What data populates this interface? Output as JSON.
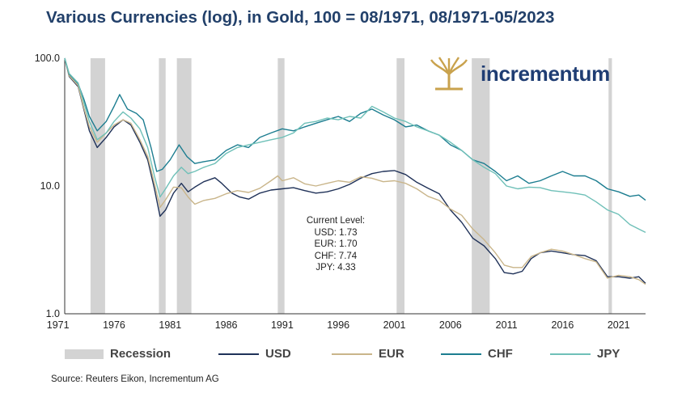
{
  "chart_data": {
    "type": "line",
    "title": "Various Currencies (log), in Gold, 100 = 08/1971, 08/1971-05/2023",
    "y_scale": "log",
    "ylim": [
      1,
      100
    ],
    "xlim": [
      1971.6,
      2023.4
    ],
    "y_ticks": [
      "100.0",
      "10.0",
      "1.0"
    ],
    "x_ticks": [
      "1971",
      "1976",
      "1981",
      "1986",
      "1991",
      "1996",
      "2001",
      "2006",
      "2011",
      "2016",
      "2021"
    ],
    "recessions": [
      [
        1973.9,
        1975.2
      ],
      [
        1980.0,
        1980.6
      ],
      [
        1981.6,
        1982.9
      ],
      [
        1990.6,
        1991.2
      ],
      [
        2001.2,
        2001.9
      ],
      [
        2007.9,
        2009.5
      ],
      [
        2020.1,
        2020.4
      ]
    ],
    "series": [
      {
        "name": "USD",
        "color": "#1f3158",
        "points": [
          [
            1971.6,
            100
          ],
          [
            1972,
            72
          ],
          [
            1972.8,
            60
          ],
          [
            1973.3,
            40
          ],
          [
            1973.8,
            27
          ],
          [
            1974.5,
            20
          ],
          [
            1975.3,
            24
          ],
          [
            1976,
            29
          ],
          [
            1976.8,
            33
          ],
          [
            1977.5,
            30
          ],
          [
            1978.3,
            22
          ],
          [
            1979,
            16
          ],
          [
            1979.6,
            9.5
          ],
          [
            1980.1,
            5.8
          ],
          [
            1980.6,
            6.5
          ],
          [
            1981.3,
            8.8
          ],
          [
            1982,
            10.5
          ],
          [
            1982.6,
            9
          ],
          [
            1983.2,
            9.8
          ],
          [
            1984,
            10.8
          ],
          [
            1985,
            11.6
          ],
          [
            1985.6,
            10.5
          ],
          [
            1986.5,
            8.8
          ],
          [
            1987.2,
            8.2
          ],
          [
            1988,
            7.9
          ],
          [
            1989,
            8.8
          ],
          [
            1990,
            9.3
          ],
          [
            1991,
            9.5
          ],
          [
            1992,
            9.7
          ],
          [
            1993,
            9.2
          ],
          [
            1994,
            8.8
          ],
          [
            1995,
            9.0
          ],
          [
            1996,
            9.5
          ],
          [
            1997,
            10.3
          ],
          [
            1998,
            11.5
          ],
          [
            1999,
            12.5
          ],
          [
            2000,
            13.0
          ],
          [
            2001,
            13.2
          ],
          [
            2002,
            12.3
          ],
          [
            2003,
            10.7
          ],
          [
            2004,
            9.6
          ],
          [
            2005,
            8.7
          ],
          [
            2006,
            6.5
          ],
          [
            2007,
            5.2
          ],
          [
            2008,
            3.9
          ],
          [
            2009,
            3.4
          ],
          [
            2010,
            2.7
          ],
          [
            2010.8,
            2.1
          ],
          [
            2011.6,
            2.05
          ],
          [
            2012.4,
            2.15
          ],
          [
            2013.2,
            2.7
          ],
          [
            2014,
            3.0
          ],
          [
            2015,
            3.1
          ],
          [
            2016,
            3.0
          ],
          [
            2017,
            2.9
          ],
          [
            2018,
            2.85
          ],
          [
            2019,
            2.6
          ],
          [
            2020,
            1.95
          ],
          [
            2021,
            1.95
          ],
          [
            2022,
            1.9
          ],
          [
            2022.8,
            1.95
          ],
          [
            2023.4,
            1.73
          ]
        ]
      },
      {
        "name": "EUR",
        "color": "#c9b58a",
        "points": [
          [
            1971.6,
            100
          ],
          [
            1972,
            73
          ],
          [
            1972.8,
            61
          ],
          [
            1973.3,
            41
          ],
          [
            1973.8,
            29
          ],
          [
            1974.5,
            22
          ],
          [
            1975.3,
            26
          ],
          [
            1976,
            30
          ],
          [
            1976.8,
            33
          ],
          [
            1977.5,
            31
          ],
          [
            1978.3,
            23
          ],
          [
            1979,
            17
          ],
          [
            1979.6,
            10.5
          ],
          [
            1980.1,
            6.8
          ],
          [
            1980.6,
            7.8
          ],
          [
            1981.3,
            9.8
          ],
          [
            1982,
            9.7
          ],
          [
            1982.6,
            8.2
          ],
          [
            1983.2,
            7.2
          ],
          [
            1984,
            7.7
          ],
          [
            1985,
            8.0
          ],
          [
            1986,
            8.7
          ],
          [
            1987,
            9.2
          ],
          [
            1988,
            8.9
          ],
          [
            1989,
            9.6
          ],
          [
            1990,
            11.0
          ],
          [
            1990.6,
            12.0
          ],
          [
            1991,
            11.0
          ],
          [
            1992,
            11.6
          ],
          [
            1993,
            10.4
          ],
          [
            1994,
            10.0
          ],
          [
            1995,
            10.5
          ],
          [
            1996,
            11.0
          ],
          [
            1997,
            10.7
          ],
          [
            1998,
            11.8
          ],
          [
            1999,
            11.5
          ],
          [
            2000,
            10.8
          ],
          [
            2001,
            11.0
          ],
          [
            2002,
            10.5
          ],
          [
            2003,
            9.5
          ],
          [
            2004,
            8.3
          ],
          [
            2005,
            7.7
          ],
          [
            2006,
            6.6
          ],
          [
            2007,
            5.9
          ],
          [
            2008,
            4.6
          ],
          [
            2009,
            3.8
          ],
          [
            2010,
            3.0
          ],
          [
            2010.8,
            2.4
          ],
          [
            2011.6,
            2.3
          ],
          [
            2012.4,
            2.3
          ],
          [
            2013.2,
            2.8
          ],
          [
            2014,
            3.0
          ],
          [
            2015,
            3.2
          ],
          [
            2016,
            3.1
          ],
          [
            2017,
            2.9
          ],
          [
            2018,
            2.7
          ],
          [
            2019,
            2.55
          ],
          [
            2020,
            1.9
          ],
          [
            2021,
            2.0
          ],
          [
            2022,
            1.95
          ],
          [
            2022.8,
            1.85
          ],
          [
            2023.4,
            1.7
          ]
        ]
      },
      {
        "name": "CHF",
        "color": "#1c7d90",
        "points": [
          [
            1971.6,
            100
          ],
          [
            1972,
            75
          ],
          [
            1972.8,
            63
          ],
          [
            1973.3,
            48
          ],
          [
            1973.8,
            35
          ],
          [
            1974.5,
            27
          ],
          [
            1975.3,
            32
          ],
          [
            1976,
            42
          ],
          [
            1976.5,
            52
          ],
          [
            1977.2,
            40
          ],
          [
            1978,
            37
          ],
          [
            1978.6,
            33
          ],
          [
            1979.3,
            20
          ],
          [
            1979.8,
            13
          ],
          [
            1980.3,
            13.5
          ],
          [
            1981,
            16
          ],
          [
            1981.8,
            21
          ],
          [
            1982.5,
            17
          ],
          [
            1983.2,
            15
          ],
          [
            1984,
            15.5
          ],
          [
            1985,
            16
          ],
          [
            1986,
            19
          ],
          [
            1987,
            21
          ],
          [
            1988,
            20
          ],
          [
            1989,
            24
          ],
          [
            1990,
            26
          ],
          [
            1991,
            28
          ],
          [
            1992,
            27
          ],
          [
            1993,
            29
          ],
          [
            1994,
            31
          ],
          [
            1995,
            33
          ],
          [
            1996,
            35
          ],
          [
            1997,
            32
          ],
          [
            1998,
            37
          ],
          [
            1999,
            40
          ],
          [
            2000,
            36
          ],
          [
            2001,
            33
          ],
          [
            2002,
            29
          ],
          [
            2003,
            30
          ],
          [
            2004,
            27
          ],
          [
            2005,
            25
          ],
          [
            2006,
            21
          ],
          [
            2007,
            19
          ],
          [
            2008,
            16
          ],
          [
            2009,
            15
          ],
          [
            2010,
            13
          ],
          [
            2011,
            11
          ],
          [
            2012,
            12
          ],
          [
            2013,
            10.5
          ],
          [
            2014,
            11
          ],
          [
            2015,
            12
          ],
          [
            2016,
            13
          ],
          [
            2017,
            12
          ],
          [
            2018,
            12
          ],
          [
            2019,
            11
          ],
          [
            2020,
            9.5
          ],
          [
            2021,
            9.0
          ],
          [
            2022,
            8.3
          ],
          [
            2022.8,
            8.5
          ],
          [
            2023.4,
            7.74
          ]
        ]
      },
      {
        "name": "JPY",
        "color": "#6fc0b8",
        "points": [
          [
            1971.6,
            100
          ],
          [
            1972,
            76
          ],
          [
            1972.8,
            64
          ],
          [
            1973.3,
            45
          ],
          [
            1973.8,
            32
          ],
          [
            1974.5,
            23
          ],
          [
            1975.3,
            26
          ],
          [
            1976,
            32
          ],
          [
            1976.8,
            38
          ],
          [
            1977.5,
            34
          ],
          [
            1978.3,
            28
          ],
          [
            1979,
            20
          ],
          [
            1979.6,
            12
          ],
          [
            1980.1,
            8.2
          ],
          [
            1980.6,
            9.5
          ],
          [
            1981.3,
            12
          ],
          [
            1982,
            14
          ],
          [
            1982.6,
            12.5
          ],
          [
            1983.2,
            13
          ],
          [
            1984,
            14
          ],
          [
            1985,
            15
          ],
          [
            1986,
            18
          ],
          [
            1987,
            20
          ],
          [
            1988,
            21
          ],
          [
            1989,
            22
          ],
          [
            1990,
            23
          ],
          [
            1991,
            24
          ],
          [
            1992,
            26
          ],
          [
            1993,
            31
          ],
          [
            1994,
            32
          ],
          [
            1995,
            34
          ],
          [
            1996,
            33
          ],
          [
            1997,
            35
          ],
          [
            1998,
            34
          ],
          [
            1999,
            42
          ],
          [
            2000,
            38
          ],
          [
            2001,
            34
          ],
          [
            2002,
            32
          ],
          [
            2003,
            29
          ],
          [
            2004,
            27
          ],
          [
            2005,
            25
          ],
          [
            2006,
            22
          ],
          [
            2007,
            19
          ],
          [
            2008,
            16
          ],
          [
            2009,
            14
          ],
          [
            2010,
            12.5
          ],
          [
            2011,
            10
          ],
          [
            2012,
            9.5
          ],
          [
            2013,
            9.8
          ],
          [
            2014,
            9.7
          ],
          [
            2015,
            9.2
          ],
          [
            2016,
            9.0
          ],
          [
            2017,
            8.8
          ],
          [
            2018,
            8.5
          ],
          [
            2019,
            7.5
          ],
          [
            2020,
            6.5
          ],
          [
            2021,
            6.0
          ],
          [
            2022,
            5.0
          ],
          [
            2022.8,
            4.6
          ],
          [
            2023.4,
            4.33
          ]
        ]
      }
    ],
    "legend": {
      "placement": "bottom",
      "entries": [
        "Recession",
        "USD",
        "EUR",
        "CHF",
        "JPY"
      ],
      "recession_color": "#d3d3d3"
    },
    "annotation": {
      "heading": "Current Level:",
      "lines": [
        "USD: 1.73",
        "EUR: 1.70",
        "CHF: 7.74",
        "JPY: 4.33"
      ]
    }
  },
  "source": "Source: Reuters Eikon, Incrementum AG",
  "logo": {
    "text": "incrementum",
    "icon": "tree-logo-icon",
    "color": "#1f3d73",
    "icon_color": "#c9a24d"
  }
}
